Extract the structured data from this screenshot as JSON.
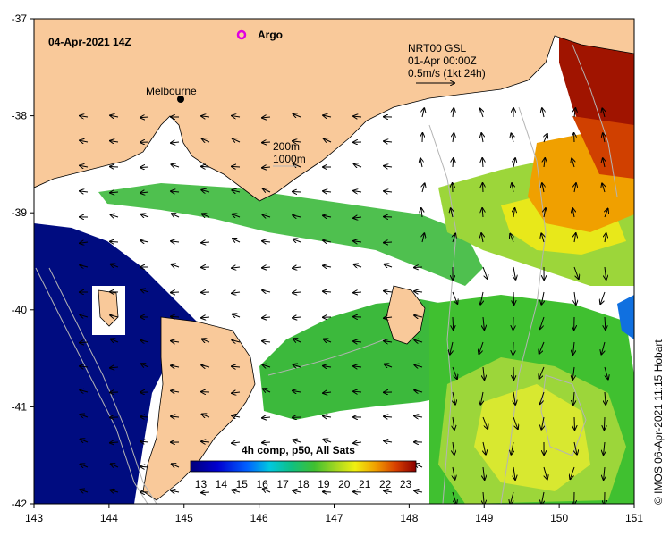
{
  "map": {
    "timestamp": "04-Apr-2021 14Z",
    "argo_label": "Argo",
    "city_label": "Melbourne",
    "current_legend": {
      "source": "NRT00 GSL",
      "date": "01-Apr 00:00Z",
      "scale": "0.5m/s (1kt 24h)"
    },
    "contour_legend": [
      "200m",
      "1000m"
    ],
    "credit": "© IMOS 06-Apr-2021 11:15 Hobart",
    "x_ticks": [
      "143",
      "144",
      "145",
      "146",
      "147",
      "148",
      "149",
      "150",
      "151"
    ],
    "y_ticks": [
      "-37",
      "-38",
      "-39",
      "-40",
      "-41",
      "-42"
    ],
    "colorbar": {
      "title": "4h comp, p50, All Sats",
      "ticks": [
        "13",
        "14",
        "15",
        "16",
        "17",
        "18",
        "19",
        "20",
        "21",
        "22",
        "23"
      ],
      "min": 12.5,
      "max": 23.5
    },
    "extent": {
      "lon": [
        143,
        151
      ],
      "lat": [
        -42,
        -37
      ]
    },
    "colors": {
      "land": "#f9c99a",
      "cold": "#000c80",
      "green": "#3cb93c",
      "light_green": "#8fd24f",
      "yellow": "#e8e81a",
      "orange": "#f0a000",
      "red": "#a01400",
      "no_data": "#ffffff",
      "argo": "#e000e0"
    }
  }
}
